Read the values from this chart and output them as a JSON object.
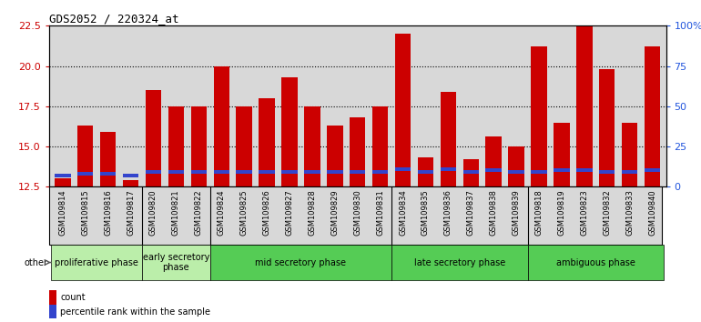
{
  "title": "GDS2052 / 220324_at",
  "samples": [
    "GSM109814",
    "GSM109815",
    "GSM109816",
    "GSM109817",
    "GSM109820",
    "GSM109821",
    "GSM109822",
    "GSM109824",
    "GSM109825",
    "GSM109826",
    "GSM109827",
    "GSM109828",
    "GSM109829",
    "GSM109830",
    "GSM109831",
    "GSM109834",
    "GSM109835",
    "GSM109836",
    "GSM109837",
    "GSM109838",
    "GSM109839",
    "GSM109818",
    "GSM109819",
    "GSM109823",
    "GSM109832",
    "GSM109833",
    "GSM109840"
  ],
  "count_values": [
    13.0,
    16.3,
    15.9,
    12.9,
    18.5,
    17.5,
    17.5,
    20.0,
    17.5,
    18.0,
    19.3,
    17.5,
    16.3,
    16.8,
    17.5,
    22.0,
    14.3,
    18.4,
    14.2,
    15.6,
    15.0,
    21.2,
    16.5,
    22.5,
    19.8,
    16.5,
    21.2
  ],
  "blue_bottoms": [
    13.1,
    13.2,
    13.2,
    13.1,
    13.3,
    13.3,
    13.3,
    13.3,
    13.3,
    13.3,
    13.3,
    13.3,
    13.3,
    13.3,
    13.3,
    13.5,
    13.3,
    13.5,
    13.3,
    13.4,
    13.3,
    13.3,
    13.4,
    13.4,
    13.3,
    13.3,
    13.4
  ],
  "bar_bottom": 12.5,
  "ylim_left": [
    12.5,
    22.5
  ],
  "ylim_right": [
    0,
    100
  ],
  "yticks_left": [
    12.5,
    15.0,
    17.5,
    20.0,
    22.5
  ],
  "yticks_right": [
    0,
    25,
    50,
    75,
    100
  ],
  "color_red": "#cc0000",
  "color_blue": "#3344cc",
  "bg_color": "#d8d8d8",
  "phase_groups": [
    {
      "label": "proliferative phase",
      "indices": [
        0,
        1,
        2,
        3
      ],
      "color": "#bbeeaa"
    },
    {
      "label": "early secretory\nphase",
      "indices": [
        4,
        5,
        6
      ],
      "color": "#bbeeaa"
    },
    {
      "label": "mid secretory phase",
      "indices": [
        7,
        8,
        9,
        10,
        11,
        12,
        13,
        14
      ],
      "color": "#55cc55"
    },
    {
      "label": "late secretory phase",
      "indices": [
        15,
        16,
        17,
        18,
        19,
        20
      ],
      "color": "#55cc55"
    },
    {
      "label": "ambiguous phase",
      "indices": [
        21,
        22,
        23,
        24,
        25,
        26
      ],
      "color": "#55cc55"
    }
  ],
  "phase_dividers": [
    4,
    7,
    15,
    21
  ]
}
